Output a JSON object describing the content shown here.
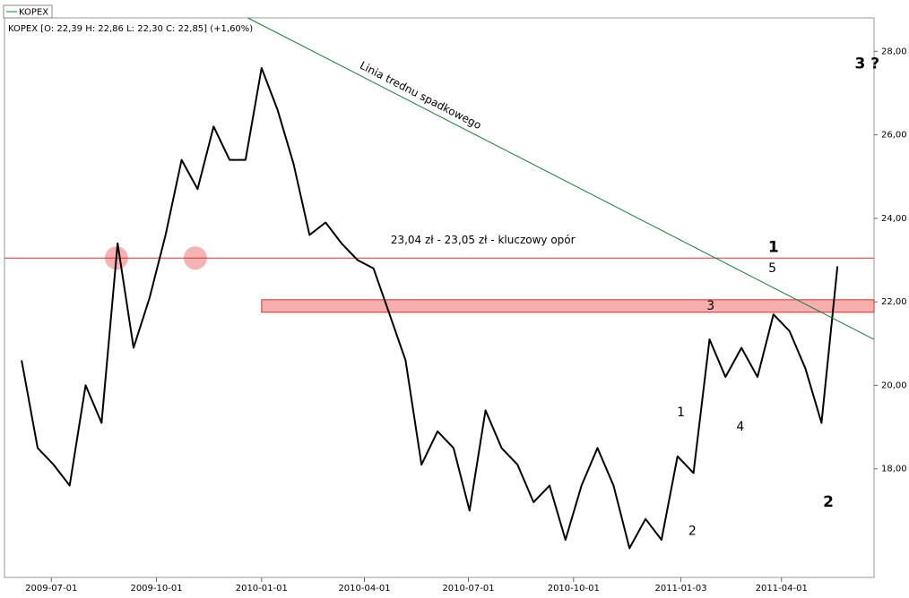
{
  "chart_data": {
    "type": "line",
    "legend": "KOPEX",
    "header": "KOPEX [O: 22,39  H: 22,86  L: 22,30  C: 22,85] (+1,60%)",
    "x": [
      "2009-06-05",
      "2009-06-19",
      "2009-07-03",
      "2009-07-17",
      "2009-07-31",
      "2009-08-14",
      "2009-08-28",
      "2009-09-11",
      "2009-09-25",
      "2009-10-09",
      "2009-10-23",
      "2009-11-06",
      "2009-11-20",
      "2009-12-04",
      "2009-12-18",
      "2010-01-01",
      "2010-01-15",
      "2010-01-29",
      "2010-02-12",
      "2010-02-26",
      "2010-03-12",
      "2010-03-26",
      "2010-04-09",
      "2010-04-23",
      "2010-05-07",
      "2010-05-21",
      "2010-06-04",
      "2010-06-18",
      "2010-07-02",
      "2010-07-16",
      "2010-07-30",
      "2010-08-13",
      "2010-08-27",
      "2010-09-10",
      "2010-09-24",
      "2010-10-08",
      "2010-10-22",
      "2010-11-05",
      "2010-11-19",
      "2010-12-03",
      "2010-12-17",
      "2010-12-31",
      "2011-01-14",
      "2011-01-28",
      "2011-02-11",
      "2011-02-25",
      "2011-03-11",
      "2011-03-25",
      "2011-04-08",
      "2011-04-22",
      "2011-05-06",
      "2011-05-20"
    ],
    "series": [
      {
        "name": "KOPEX",
        "color": "#000000",
        "values": [
          20.6,
          18.5,
          18.1,
          17.6,
          20.0,
          19.1,
          23.4,
          20.9,
          22.1,
          23.6,
          25.4,
          24.7,
          26.2,
          25.4,
          25.4,
          27.6,
          26.6,
          25.3,
          23.6,
          23.9,
          23.4,
          23.0,
          22.8,
          21.7,
          20.6,
          18.1,
          18.9,
          18.5,
          17.0,
          19.4,
          18.5,
          18.1,
          17.2,
          17.6,
          16.3,
          17.6,
          18.5,
          17.6,
          16.1,
          16.8,
          16.3,
          18.3,
          17.9,
          21.1,
          20.2,
          20.9,
          20.2,
          21.7,
          21.3,
          20.4,
          19.1,
          22.85
        ]
      }
    ],
    "xlim": [
      "2009-05-21",
      "2011-06-21"
    ],
    "xticks": [
      "2009-07-01",
      "2009-10-01",
      "2010-01-01",
      "2010-04-01",
      "2010-07-01",
      "2010-10-01",
      "2011-01-03",
      "2011-04-01"
    ],
    "ylim": [
      15.4,
      28.8
    ],
    "yticks": [
      {
        "value": 18,
        "label": "18,00"
      },
      {
        "value": 20,
        "label": "20,00"
      },
      {
        "value": 22,
        "label": "22,00"
      },
      {
        "value": 24,
        "label": "24,00"
      },
      {
        "value": 26,
        "label": "26,00"
      },
      {
        "value": 28,
        "label": "28,00"
      }
    ],
    "resistance": {
      "value": 23.05,
      "color": "#d03030",
      "label": "23,04 zł - 23,05 zł - kluczowy opór",
      "label_x": "2010-04-24",
      "label_y": 23.3
    },
    "zone": {
      "x_start": "2010-01-01",
      "low": 21.75,
      "high": 22.05,
      "color": "#f4a0a0"
    },
    "highlights": [
      {
        "x": "2009-08-27",
        "y": 23.05
      },
      {
        "x": "2009-11-04",
        "y": 23.05
      }
    ],
    "trendline": {
      "x": [
        "2009-12-20",
        "2011-06-21"
      ],
      "y": [
        28.8,
        21.1
      ],
      "color": "#1d7a3a",
      "label": "Linia trednu spadkowego",
      "label_x": "2010-05-20"
    },
    "wave_labels": [
      {
        "text": "1",
        "x": "2011-01-03",
        "y": 19.35,
        "color": "#e03030"
      },
      {
        "text": "2",
        "x": "2011-01-13",
        "y": 16.5,
        "color": "#e03030"
      },
      {
        "text": "3",
        "x": "2011-01-29",
        "y": 21.9,
        "color": "#e03030"
      },
      {
        "text": "4",
        "x": "2011-02-24",
        "y": 19.0,
        "color": "#e03030"
      },
      {
        "text": "5",
        "x": "2011-03-24",
        "y": 22.8,
        "color": "#e03030"
      },
      {
        "text": "1",
        "x": "2011-03-25",
        "y": 23.3,
        "color": "#22dd55"
      },
      {
        "text": "2",
        "x": "2011-05-12",
        "y": 17.2,
        "color": "#22dd55"
      },
      {
        "text": "3 ?",
        "x": "2011-06-15",
        "y": 27.7,
        "color": "#22dd55"
      }
    ]
  }
}
